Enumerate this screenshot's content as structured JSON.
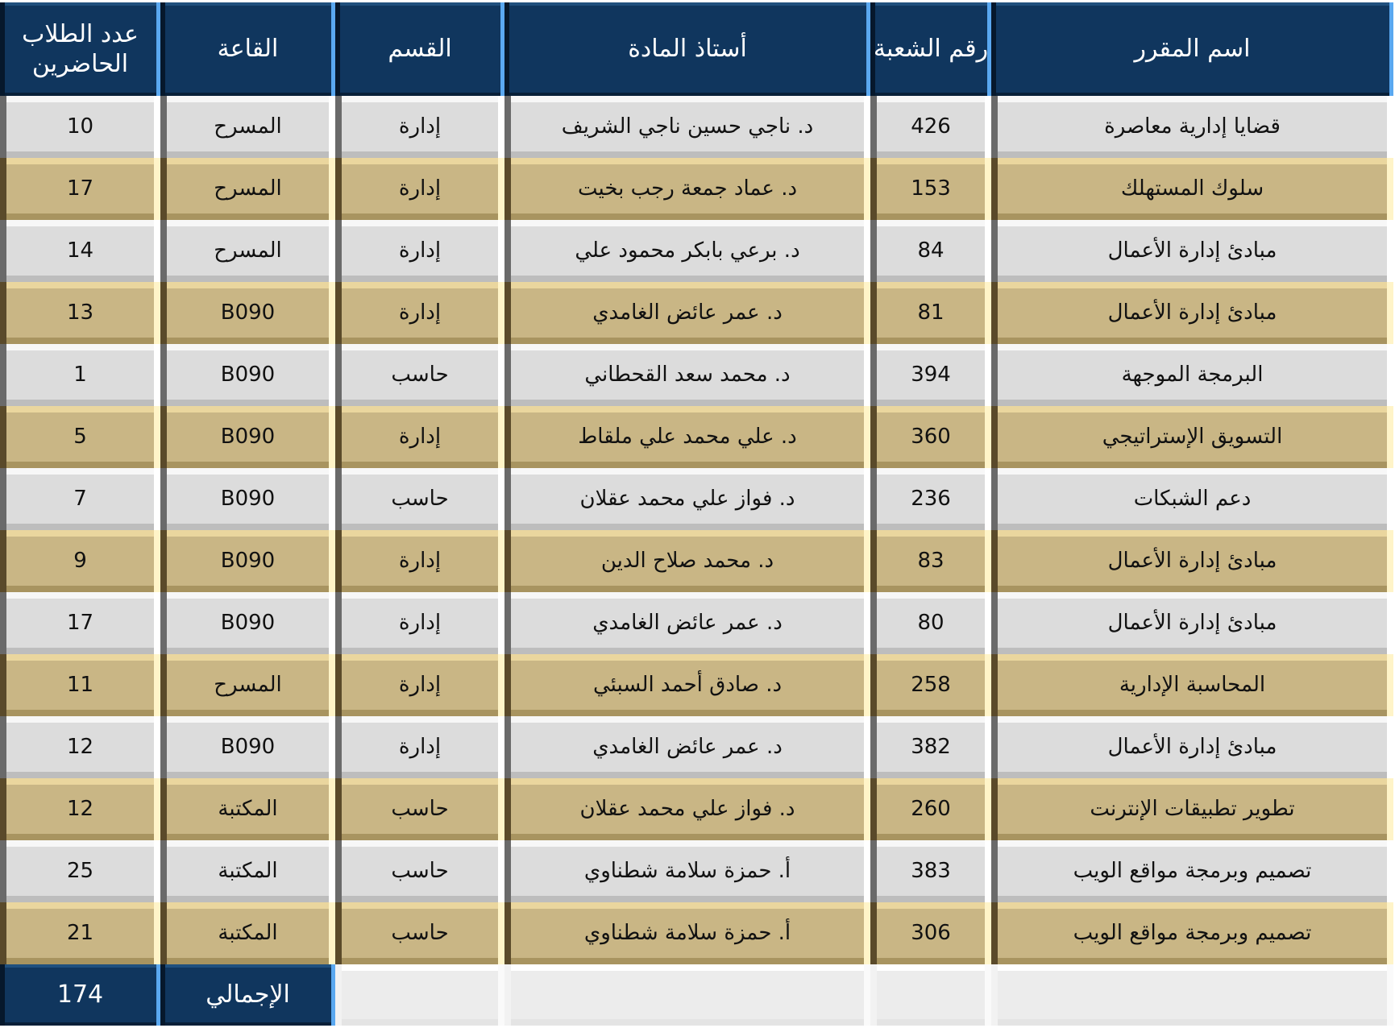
{
  "headers": [
    "اسم المقرر",
    "رقم الشعبة",
    "أستاذ المادة",
    "القسم",
    "القاعة",
    "عدد الطلاب الحاضرين"
  ],
  "rows": [
    [
      "قضايا إدارية معاصرة",
      "426",
      "د. ناجي حسين ناجي الشريف",
      "إدارة",
      "المسرح",
      "10"
    ],
    [
      "سلوك المستهلك",
      "153",
      "د. عماد جمعة رجب بخيت",
      "إدارة",
      "المسرح",
      "17"
    ],
    [
      "مبادئ إدارة الأعمال",
      "84",
      "د. برعي بابكر محمود علي",
      "إدارة",
      "المسرح",
      "14"
    ],
    [
      "مبادئ إدارة الأعمال",
      "81",
      "د. عمر عائض الغامدي",
      "إدارة",
      "B090",
      "13"
    ],
    [
      "البرمجة الموجهة",
      "394",
      "د. محمد سعد القحطاني",
      "حاسب",
      "B090",
      "1"
    ],
    [
      "التسويق الإستراتيجي",
      "360",
      "د. علي محمد علي ملقاط",
      "إدارة",
      "B090",
      "5"
    ],
    [
      "دعم الشبكات",
      "236",
      "د. فواز علي محمد عقلان",
      "حاسب",
      "B090",
      "7"
    ],
    [
      "مبادئ إدارة الأعمال",
      "83",
      "د. محمد صلاح الدين",
      "إدارة",
      "B090",
      "9"
    ],
    [
      "مبادئ إدارة الأعمال",
      "80",
      "د. عمر عائض الغامدي",
      "إدارة",
      "B090",
      "17"
    ],
    [
      "المحاسبة الإدارية",
      "258",
      "د. صادق أحمد السبئي",
      "إدارة",
      "المسرح",
      "11"
    ],
    [
      "مبادئ إدارة الأعمال",
      "382",
      "د. عمر عائض الغامدي",
      "إدارة",
      "B090",
      "12"
    ],
    [
      "تطوير  تطبيقات الإنترنت",
      "260",
      "د. فواز علي محمد عقلان",
      "حاسب",
      "المكتبة",
      "12"
    ],
    [
      "تصميم وبرمجة مواقع الويب",
      "383",
      "أ. حمزة سلامة شطناوي",
      "حاسب",
      "المكتبة",
      "25"
    ],
    [
      "تصميم وبرمجة مواقع الويب",
      "306",
      "أ. حمزة سلامة شطناوي",
      "حاسب",
      "المكتبة",
      "21"
    ]
  ],
  "total": {
    "label": "الإجمالي",
    "value": "174"
  },
  "colors": {
    "header": "#10365e",
    "row_light": "#dcdcdc",
    "row_tan": "#c9b685"
  }
}
